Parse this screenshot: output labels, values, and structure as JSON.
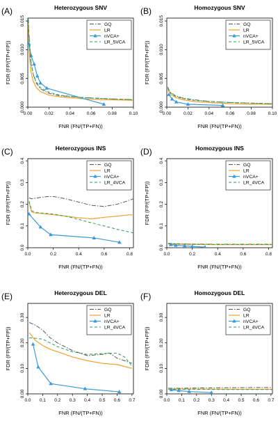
{
  "figure": {
    "xlabel": "FNR (FN/(TP+FN))",
    "ylabel": "FDR (FP/(TP+FP))"
  },
  "style": {
    "colors": {
      "GQ": "#555555",
      "LR": "#f0a030",
      "nVCA+": "#3a9ad9",
      "LR_5VCA": "#22a04a",
      "LR_4VCA": "#22a04a"
    },
    "dash": {
      "GQ": "6,2,1.5,2",
      "LR": "",
      "nVCA+": "",
      "LR_5VCA": "4,3",
      "LR_4VCA": "4,3"
    },
    "line_width": {
      "GQ": 1.0,
      "LR": 1.2,
      "nVCA+": 1.2,
      "LR_5VCA": 1.0,
      "LR_4VCA": 1.0
    },
    "marker": {
      "nVCA+": "triangle-up"
    }
  },
  "chart_data": [
    {
      "panel_label": "(A)",
      "type": "line",
      "title": "Heterozygous SNV",
      "xlabel": "FNR (FN/(TP+FN))",
      "ylabel": "FDR (FP/(TP+FP))",
      "xlim": [
        0,
        0.1
      ],
      "ylim": [
        0,
        0.0155
      ],
      "xticks": [
        "0.00",
        "0.02",
        "0.04",
        "0.06",
        "0.08",
        "0.10"
      ],
      "yticks": [
        "0.000",
        "0.005",
        "0.010",
        "0.015"
      ],
      "legend_position": "top-right",
      "grid": false,
      "series": [
        {
          "name": "GQ",
          "x": [
            0.0005,
            0.001,
            0.002,
            0.003,
            0.005,
            0.008,
            0.012,
            0.02,
            0.03,
            0.05,
            0.07,
            0.1
          ],
          "y": [
            0.0153,
            0.013,
            0.0105,
            0.008,
            0.0058,
            0.0042,
            0.0032,
            0.0024,
            0.002,
            0.0017,
            0.0015,
            0.0013
          ]
        },
        {
          "name": "LR",
          "x": [
            0.0005,
            0.001,
            0.002,
            0.003,
            0.005,
            0.008,
            0.012,
            0.02,
            0.03,
            0.05,
            0.07,
            0.1
          ],
          "y": [
            0.0145,
            0.011,
            0.008,
            0.0062,
            0.0046,
            0.0034,
            0.0027,
            0.0021,
            0.0018,
            0.0015,
            0.0013,
            0.0012
          ]
        },
        {
          "name": "nVCA+",
          "x": [
            0.001,
            0.003,
            0.006,
            0.009,
            0.012,
            0.018,
            0.072
          ],
          "y": [
            0.011,
            0.009,
            0.0075,
            0.0054,
            0.0042,
            0.0033,
            0.0005
          ],
          "marker": true
        },
        {
          "name": "LR_5VCA",
          "x": [
            0.0005,
            0.001,
            0.002,
            0.003,
            0.005,
            0.008,
            0.012,
            0.02,
            0.03,
            0.05,
            0.07,
            0.1
          ],
          "y": [
            0.0152,
            0.0128,
            0.0102,
            0.0078,
            0.0058,
            0.0044,
            0.0034,
            0.0026,
            0.0021,
            0.0017,
            0.0015,
            0.0013
          ]
        }
      ]
    },
    {
      "panel_label": "(B)",
      "type": "line",
      "title": "Homozygous SNV",
      "xlabel": "FNR (FN/(TP+FN))",
      "ylabel": "FDR (FP/(TP+FP))",
      "xlim": [
        0,
        0.1
      ],
      "ylim": [
        0,
        0.0155
      ],
      "xticks": [
        "0.00",
        "0.02",
        "0.04",
        "0.06",
        "0.08",
        "0.10"
      ],
      "yticks": [
        "0.000",
        "0.005",
        "0.010",
        "0.015"
      ],
      "legend_position": "top-right",
      "grid": false,
      "series": [
        {
          "name": "GQ",
          "x": [
            0.001,
            0.002,
            0.004,
            0.008,
            0.015,
            0.025,
            0.04,
            0.06,
            0.08,
            0.1
          ],
          "y": [
            0.0035,
            0.003,
            0.0025,
            0.002,
            0.0016,
            0.0013,
            0.001,
            0.0008,
            0.0007,
            0.0006
          ]
        },
        {
          "name": "LR",
          "x": [
            0.001,
            0.002,
            0.004,
            0.008,
            0.015,
            0.025,
            0.04,
            0.06,
            0.08,
            0.1
          ],
          "y": [
            0.0032,
            0.0027,
            0.0022,
            0.0017,
            0.0013,
            0.001,
            0.0008,
            0.0006,
            0.0005,
            0.0005
          ]
        },
        {
          "name": "nVCA+",
          "x": [
            0.002,
            0.005,
            0.009,
            0.02,
            0.053
          ],
          "y": [
            0.0022,
            0.0014,
            0.0009,
            0.0005,
            0.0003
          ],
          "marker": true
        },
        {
          "name": "LR_5VCA",
          "x": [
            0.001,
            0.002,
            0.004,
            0.008,
            0.015,
            0.025,
            0.04,
            0.06,
            0.08,
            0.1
          ],
          "y": [
            0.0034,
            0.0029,
            0.0024,
            0.0019,
            0.0015,
            0.0012,
            0.001,
            0.0008,
            0.0007,
            0.0006
          ]
        }
      ]
    },
    {
      "panel_label": "(C)",
      "type": "line",
      "title": "Heterozygous INS",
      "xlabel": "FNR (FN/(TP+FN))",
      "ylabel": "FDR (FP/(TP+FP))",
      "xlim": [
        0,
        0.83
      ],
      "ylim": [
        0,
        0.41
      ],
      "xticks": [
        "0.0",
        "0.2",
        "0.4",
        "0.6",
        "0.8"
      ],
      "yticks": [
        "0.0",
        "0.1",
        "0.2",
        "0.3",
        "0.4"
      ],
      "legend_position": "top-right",
      "grid": false,
      "series": [
        {
          "name": "GQ",
          "x": [
            0.01,
            0.03,
            0.06,
            0.1,
            0.15,
            0.2,
            0.3,
            0.4,
            0.5,
            0.6,
            0.7,
            0.78,
            0.83
          ],
          "y": [
            0.23,
            0.225,
            0.228,
            0.232,
            0.235,
            0.236,
            0.225,
            0.21,
            0.195,
            0.19,
            0.2,
            0.215,
            0.225
          ]
        },
        {
          "name": "LR",
          "x": [
            0.01,
            0.03,
            0.06,
            0.1,
            0.2,
            0.3,
            0.4,
            0.5,
            0.6,
            0.7,
            0.8,
            0.83
          ],
          "y": [
            0.21,
            0.165,
            0.16,
            0.158,
            0.152,
            0.145,
            0.138,
            0.133,
            0.14,
            0.145,
            0.152,
            0.15
          ]
        },
        {
          "name": "nVCA+",
          "x": [
            0.01,
            0.1,
            0.18,
            0.52,
            0.72
          ],
          "y": [
            0.155,
            0.095,
            0.06,
            0.045,
            0.025
          ],
          "marker": true
        },
        {
          "name": "LR_4VCA",
          "x": [
            0.01,
            0.03,
            0.06,
            0.1,
            0.2,
            0.3,
            0.4,
            0.5,
            0.6,
            0.7,
            0.8,
            0.83
          ],
          "y": [
            0.215,
            0.17,
            0.163,
            0.16,
            0.155,
            0.145,
            0.13,
            0.115,
            0.1,
            0.085,
            0.072,
            0.068
          ]
        }
      ]
    },
    {
      "panel_label": "(D)",
      "type": "line",
      "title": "Homozygous INS",
      "xlabel": "FNR (FN/(TP+FN))",
      "ylabel": "FDR (FP/(TP+FP))",
      "xlim": [
        0,
        0.83
      ],
      "ylim": [
        0,
        0.41
      ],
      "xticks": [
        "0.0",
        "0.2",
        "0.4",
        "0.6",
        "0.8"
      ],
      "yticks": [
        "0.0",
        "0.1",
        "0.2",
        "0.3",
        "0.4"
      ],
      "legend_position": "top-right",
      "grid": false,
      "series": [
        {
          "name": "GQ",
          "x": [
            0.01,
            0.1,
            0.2,
            0.4,
            0.6,
            0.83
          ],
          "y": [
            0.02,
            0.018,
            0.017,
            0.016,
            0.016,
            0.016
          ]
        },
        {
          "name": "LR",
          "x": [
            0.01,
            0.1,
            0.2,
            0.4,
            0.6,
            0.83
          ],
          "y": [
            0.017,
            0.016,
            0.015,
            0.014,
            0.014,
            0.014
          ]
        },
        {
          "name": "nVCA+",
          "x": [
            0.03,
            0.07,
            0.14,
            0.2,
            0.3
          ],
          "y": [
            0.014,
            0.011,
            0.009,
            0.006,
            0.003
          ],
          "marker": true
        },
        {
          "name": "LR_4VCA",
          "x": [
            0.01,
            0.1,
            0.2,
            0.4,
            0.6,
            0.83
          ],
          "y": [
            0.019,
            0.017,
            0.016,
            0.015,
            0.015,
            0.015
          ]
        }
      ]
    },
    {
      "panel_label": "(E)",
      "type": "line",
      "title": "Heterozygous DEL",
      "xlabel": "FNR (FN/(TP+FN))",
      "ylabel": "FDR (FP/(TP+FP))",
      "xlim": [
        0,
        0.71
      ],
      "ylim": [
        0,
        0.355
      ],
      "xticks": [
        "0.0",
        "0.1",
        "0.2",
        "0.3",
        "0.4",
        "0.5",
        "0.6",
        "0.7"
      ],
      "yticks": [
        "0.00",
        "0.10",
        "0.20",
        "0.30"
      ],
      "legend_position": "top-right",
      "grid": false,
      "series": [
        {
          "name": "GQ",
          "x": [
            0.01,
            0.05,
            0.1,
            0.15,
            0.2,
            0.3,
            0.4,
            0.5,
            0.55,
            0.6,
            0.65,
            0.7
          ],
          "y": [
            0.28,
            0.27,
            0.25,
            0.22,
            0.2,
            0.17,
            0.15,
            0.155,
            0.16,
            0.14,
            0.13,
            0.12
          ]
        },
        {
          "name": "LR",
          "x": [
            0.01,
            0.05,
            0.1,
            0.15,
            0.2,
            0.3,
            0.4,
            0.5,
            0.6,
            0.7
          ],
          "y": [
            0.24,
            0.21,
            0.19,
            0.175,
            0.165,
            0.145,
            0.13,
            0.12,
            0.115,
            0.1
          ]
        },
        {
          "name": "nVCA+",
          "x": [
            0.035,
            0.07,
            0.155,
            0.385,
            0.615
          ],
          "y": [
            0.195,
            0.105,
            0.04,
            0.02,
            0.008
          ],
          "marker": true
        },
        {
          "name": "LR_4VCA",
          "x": [
            0.01,
            0.05,
            0.1,
            0.15,
            0.2,
            0.3,
            0.4,
            0.5,
            0.6,
            0.65,
            0.7
          ],
          "y": [
            0.22,
            0.218,
            0.215,
            0.2,
            0.185,
            0.165,
            0.155,
            0.158,
            0.16,
            0.145,
            0.11
          ]
        }
      ]
    },
    {
      "panel_label": "(F)",
      "type": "line",
      "title": "Homozygous DEL",
      "xlabel": "FNR (FN/(TP+FN))",
      "ylabel": "FDR (FP/(TP+FP))",
      "xlim": [
        0,
        0.71
      ],
      "ylim": [
        0,
        0.355
      ],
      "xticks": [
        "0.0",
        "0.1",
        "0.2",
        "0.3",
        "0.4",
        "0.5",
        "0.6",
        "0.7"
      ],
      "yticks": [
        "0.00",
        "0.10",
        "0.20",
        "0.30"
      ],
      "legend_position": "top-right",
      "grid": false,
      "series": [
        {
          "name": "GQ",
          "x": [
            0.01,
            0.1,
            0.2,
            0.4,
            0.6,
            0.71
          ],
          "y": [
            0.022,
            0.022,
            0.023,
            0.024,
            0.025,
            0.025
          ]
        },
        {
          "name": "LR",
          "x": [
            0.01,
            0.1,
            0.2,
            0.4,
            0.6,
            0.71
          ],
          "y": [
            0.02,
            0.019,
            0.019,
            0.018,
            0.018,
            0.018
          ]
        },
        {
          "name": "nVCA+",
          "x": [
            0.03,
            0.08,
            0.15,
            0.3
          ],
          "y": [
            0.016,
            0.013,
            0.009,
            0.005
          ],
          "marker": true
        },
        {
          "name": "LR_4VCA",
          "x": [
            0.01,
            0.1,
            0.2,
            0.4,
            0.6,
            0.71
          ],
          "y": [
            0.018,
            0.018,
            0.018,
            0.017,
            0.017,
            0.017
          ]
        }
      ]
    }
  ]
}
